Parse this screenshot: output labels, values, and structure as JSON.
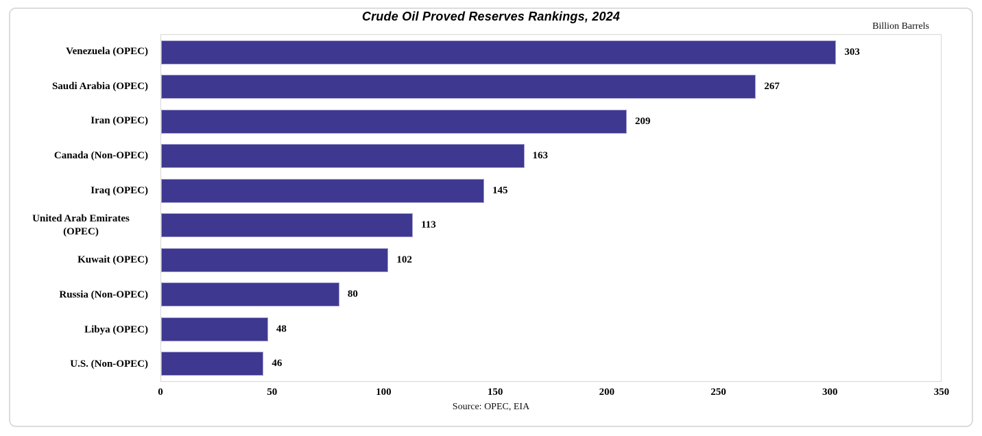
{
  "chart_data": {
    "type": "bar",
    "orientation": "horizontal",
    "title": "Crude Oil Proved Reserves Rankings, 2024",
    "unit_label": "Billion Barrels",
    "source": "Source: OPEC, EIA",
    "categories": [
      "Venezuela (OPEC)",
      "Saudi Arabia (OPEC)",
      "Iran (OPEC)",
      "Canada (Non-OPEC)",
      "Iraq (OPEC)",
      "United Arab Emirates (OPEC)",
      "Kuwait (OPEC)",
      "Russia (Non-OPEC)",
      "Libya (OPEC)",
      "U.S. (Non-OPEC)"
    ],
    "values": [
      303,
      267,
      209,
      163,
      145,
      113,
      102,
      80,
      48,
      46
    ],
    "xlim": [
      0,
      350
    ],
    "x_ticks": [
      0,
      50,
      100,
      150,
      200,
      250,
      300,
      350
    ],
    "value_labels": true,
    "grid": false,
    "legend": false,
    "bar_color": "#3e3891",
    "bar_border_color": "#a5a0d2"
  }
}
